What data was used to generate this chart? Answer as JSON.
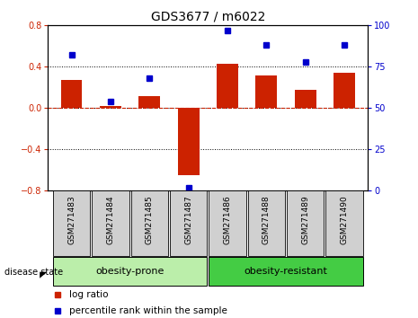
{
  "title": "GDS3677 / m6022",
  "samples": [
    "GSM271483",
    "GSM271484",
    "GSM271485",
    "GSM271487",
    "GSM271486",
    "GSM271488",
    "GSM271489",
    "GSM271490"
  ],
  "log_ratio": [
    0.27,
    0.02,
    0.12,
    -0.65,
    0.43,
    0.32,
    0.18,
    0.34
  ],
  "percentile_rank": [
    82,
    54,
    68,
    2,
    97,
    88,
    78,
    88
  ],
  "ylim_left": [
    -0.8,
    0.8
  ],
  "ylim_right": [
    0,
    100
  ],
  "yticks_left": [
    -0.8,
    -0.4,
    0,
    0.4,
    0.8
  ],
  "yticks_right": [
    0,
    25,
    50,
    75,
    100
  ],
  "bar_color": "#cc2200",
  "dot_color": "#0000cc",
  "zero_line_color": "#cc2200",
  "grid_color": "#000000",
  "bg_color": "#ffffff",
  "group1_label": "obesity-prone",
  "group2_label": "obesity-resistant",
  "group1_color": "#bbeeaa",
  "group2_color": "#44cc44",
  "group1_count": 4,
  "group2_count": 4,
  "disease_state_label": "disease state",
  "legend_bar_label": "log ratio",
  "legend_dot_label": "percentile rank within the sample",
  "title_fontsize": 10,
  "tick_fontsize": 7,
  "sample_fontsize": 6.5,
  "group_fontsize": 8,
  "legend_fontsize": 7.5
}
